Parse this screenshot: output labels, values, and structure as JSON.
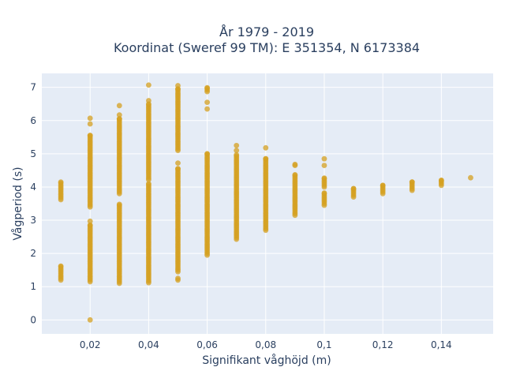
{
  "chart_data": {
    "type": "scatter",
    "title_line1": "År 1979 - 2019",
    "title_line2": "Koordinat (Sweref 99 TM): E 351354, N 6173384",
    "xlabel": "Signifikant våghöjd (m)",
    "ylabel": "Vågperiod (s)",
    "xlim": [
      0.0035,
      0.1577
    ],
    "ylim": [
      -0.42,
      7.42
    ],
    "x_ticks": [
      0.02,
      0.04,
      0.06,
      0.08,
      0.1,
      0.12,
      0.14
    ],
    "x_tick_labels": [
      "0,02",
      "0,04",
      "0,06",
      "0,08",
      "0,1",
      "0,12",
      "0,14"
    ],
    "y_ticks": [
      0,
      1,
      2,
      3,
      4,
      5,
      6,
      7
    ],
    "y_tick_labels": [
      "0",
      "1",
      "2",
      "3",
      "4",
      "5",
      "6",
      "7"
    ],
    "grid": true,
    "legend": "none",
    "colors": {
      "marker": "#d4a020",
      "plot_bg": "#e5ecf6",
      "grid": "#ffffff",
      "text": "#2a3f5f"
    },
    "points_summary": [
      {
        "x": 0.01,
        "y_ranges": [
          [
            1.2,
            1.62
          ],
          [
            3.62,
            4.15
          ]
        ]
      },
      {
        "x": 0.02,
        "y_ranges": [
          [
            1.15,
            2.85
          ],
          [
            3.4,
            5.55
          ]
        ],
        "y_points": [
          0,
          2.97,
          5.9,
          6.07
        ]
      },
      {
        "x": 0.03,
        "y_ranges": [
          [
            1.1,
            3.48
          ],
          [
            3.8,
            6.05
          ]
        ],
        "y_points": [
          6.17,
          6.45
        ]
      },
      {
        "x": 0.04,
        "y_ranges": [
          [
            1.12,
            4.1
          ],
          [
            4.22,
            6.5
          ]
        ],
        "y_points": [
          6.6,
          7.07
        ]
      },
      {
        "x": 0.05,
        "y_ranges": [
          [
            1.45,
            4.55
          ],
          [
            5.1,
            6.95
          ]
        ],
        "y_points": [
          1.2,
          1.25,
          4.72,
          7.05
        ]
      },
      {
        "x": 0.06,
        "y_ranges": [
          [
            1.95,
            5.0
          ],
          [
            6.87,
            6.99
          ]
        ],
        "y_points": [
          6.35,
          6.55
        ]
      },
      {
        "x": 0.07,
        "y_ranges": [
          [
            2.43,
            4.97
          ]
        ],
        "y_points": [
          5.1,
          5.25
        ]
      },
      {
        "x": 0.08,
        "y_ranges": [
          [
            2.7,
            4.85
          ]
        ],
        "y_points": [
          5.18
        ]
      },
      {
        "x": 0.09,
        "y_ranges": [
          [
            3.15,
            4.37
          ]
        ],
        "y_points": [
          4.65,
          4.68
        ]
      },
      {
        "x": 0.1,
        "y_ranges": [
          [
            3.45,
            3.82
          ],
          [
            4.0,
            4.27
          ]
        ],
        "y_points": [
          4.65,
          4.85
        ]
      },
      {
        "x": 0.11,
        "y_ranges": [
          [
            3.7,
            3.95
          ]
        ]
      },
      {
        "x": 0.12,
        "y_ranges": [
          [
            3.8,
            4.05
          ]
        ]
      },
      {
        "x": 0.13,
        "y_ranges": [
          [
            3.9,
            4.15
          ]
        ]
      },
      {
        "x": 0.14,
        "y_ranges": [
          [
            4.05,
            4.2
          ]
        ]
      },
      {
        "x": 0.15,
        "y_points": [
          4.28
        ]
      }
    ]
  }
}
